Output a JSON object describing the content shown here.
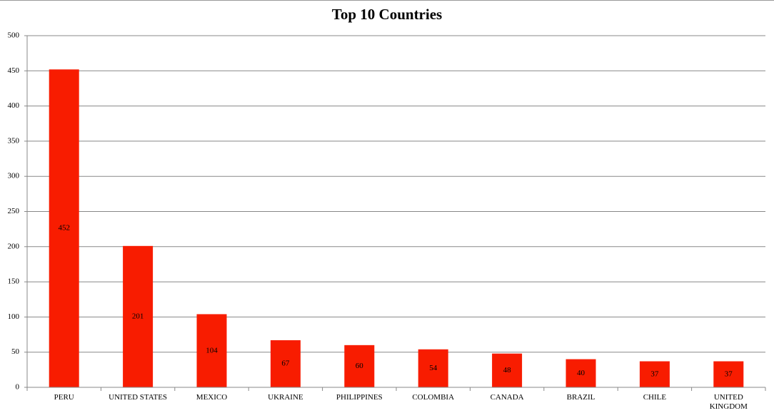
{
  "chart_data": {
    "type": "bar",
    "title": "Top 10 Countries",
    "categories": [
      "PERU",
      "UNITED STATES",
      "MEXICO",
      "UKRAINE",
      "PHILIPPINES",
      "COLOMBIA",
      "CANADA",
      "BRAZIL",
      "CHILE",
      "UNITED KINGDOM"
    ],
    "values": [
      452,
      201,
      104,
      67,
      60,
      54,
      48,
      40,
      37,
      37
    ],
    "color": "#f81c00",
    "ylim": [
      0,
      500
    ],
    "yticks": [
      0,
      50,
      100,
      150,
      200,
      250,
      300,
      350,
      400,
      450,
      500
    ],
    "grid": true
  }
}
